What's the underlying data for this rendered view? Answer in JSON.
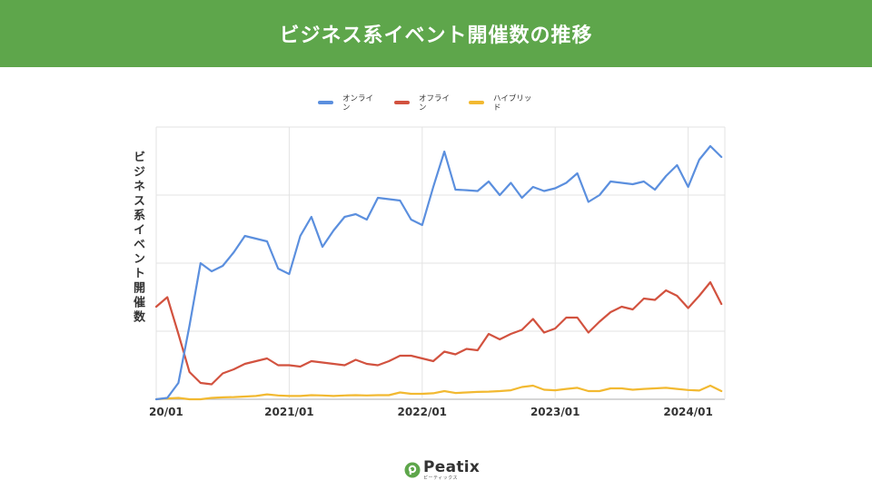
{
  "header": {
    "title": "ビジネス系イベント開催数の推移"
  },
  "brand": {
    "name": "Peatix",
    "kana": "ピーティックス",
    "color": "#5ea64b"
  },
  "chart_data": {
    "type": "line",
    "title": "",
    "ylabel": "ビジネス系イベント開催数",
    "xlabel": "",
    "grid": true,
    "legend_position": "top-center",
    "x_tick_labels": [
      "20/01",
      "2021/01",
      "2022/01",
      "2023/01",
      "2024/01"
    ],
    "x_tick_index": [
      0,
      12,
      24,
      36,
      48
    ],
    "ylim": [
      0,
      100
    ],
    "y_gridlines": [
      0,
      25,
      50,
      75,
      100
    ],
    "series": [
      {
        "name": "オンライン",
        "legend_lines": [
          "オンライ",
          "ン"
        ],
        "color": "#5b8fde",
        "values": [
          0,
          0.5,
          6,
          27,
          50,
          47,
          49,
          54,
          60,
          59,
          58,
          48,
          46,
          60,
          67,
          56,
          62,
          67,
          68,
          66,
          74,
          73.5,
          73,
          66,
          64,
          78,
          91,
          77,
          76.8,
          76.5,
          80,
          75,
          79.5,
          74,
          78,
          76.5,
          77.5,
          79.5,
          83,
          72.5,
          75,
          80,
          79.5,
          79,
          80,
          77,
          82,
          86,
          78,
          88,
          93,
          89
        ]
      },
      {
        "name": "オフライン",
        "legend_lines": [
          "オフライ",
          "ン"
        ],
        "color": "#d2523f",
        "values": [
          34,
          37.5,
          24,
          10,
          6,
          5.5,
          9.5,
          11,
          13,
          14,
          15,
          12.5,
          12.5,
          12,
          14,
          13.5,
          13,
          12.5,
          14.5,
          13,
          12.5,
          14,
          16,
          16,
          15,
          14,
          17.5,
          16.5,
          18.5,
          18,
          24,
          22,
          24,
          25.5,
          29.5,
          24.5,
          26,
          30,
          30,
          24.5,
          28.5,
          32,
          34,
          33,
          37,
          36.5,
          40,
          38,
          33.5,
          38,
          43,
          35
        ]
      },
      {
        "name": "ハイブリッド",
        "legend_lines": [
          "ハイブリッ",
          "ド"
        ],
        "color": "#f2b931",
        "values": [
          0,
          0.3,
          0.5,
          0,
          0,
          0.5,
          0.7,
          0.8,
          1,
          1.2,
          1.8,
          1.4,
          1.2,
          1.2,
          1.5,
          1.4,
          1.2,
          1.4,
          1.5,
          1.4,
          1.5,
          1.5,
          2.5,
          2,
          2,
          2.2,
          3,
          2.3,
          2.5,
          2.7,
          2.8,
          3,
          3.3,
          4.5,
          5,
          3.5,
          3.3,
          3.8,
          4.2,
          3,
          3,
          4,
          4,
          3.5,
          3.8,
          4,
          4.2,
          3.8,
          3.4,
          3.2,
          5,
          3
        ]
      }
    ]
  }
}
